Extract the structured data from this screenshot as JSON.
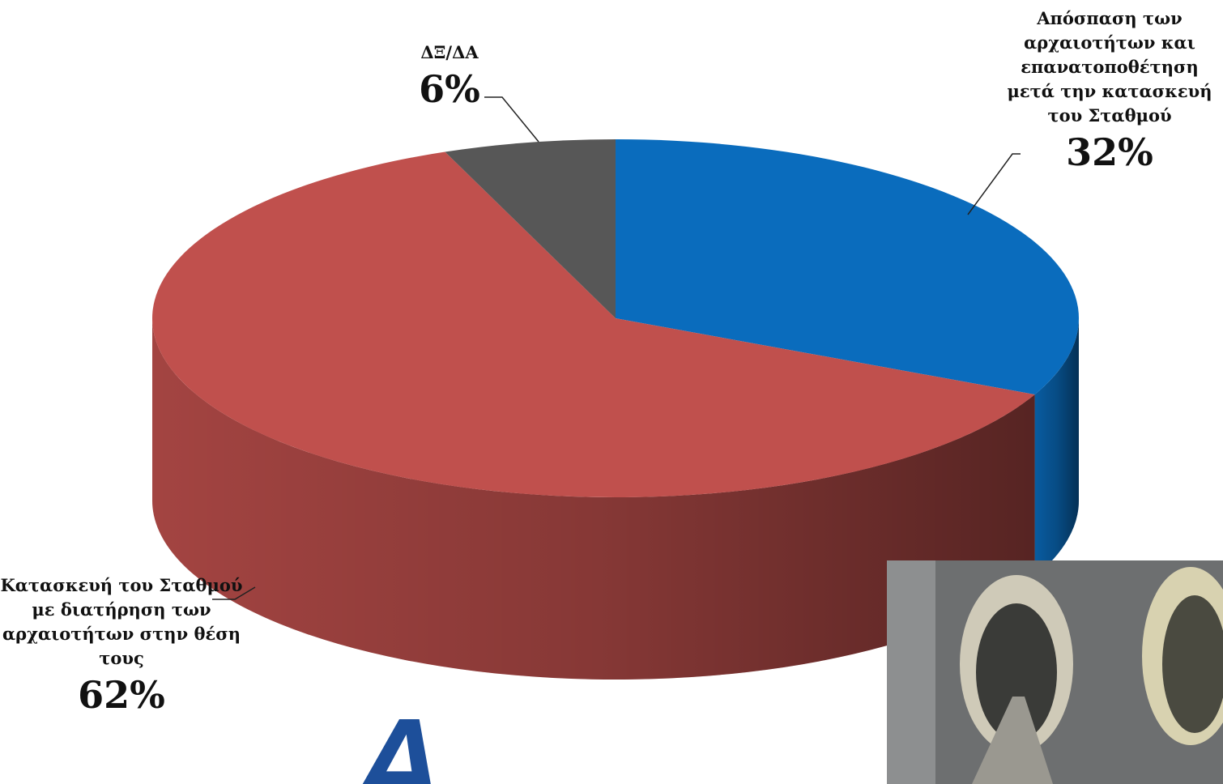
{
  "chart_data": {
    "type": "pie",
    "categories": [
      "Απόσπαση των αρχαιοτήτων και επανατοποθέτηση μετά την κατασκευή του Σταθμού",
      "Κατασκευή του Σταθμού με διατήρηση των αρχαιοτήτων στην θέση τους",
      "ΔΞ/ΔΑ"
    ],
    "values": [
      32,
      62,
      6
    ],
    "value_labels": [
      "32%",
      "62%",
      "6%"
    ],
    "colors": [
      "#0a6cbd",
      "#c0504d",
      "#575757"
    ]
  }
}
